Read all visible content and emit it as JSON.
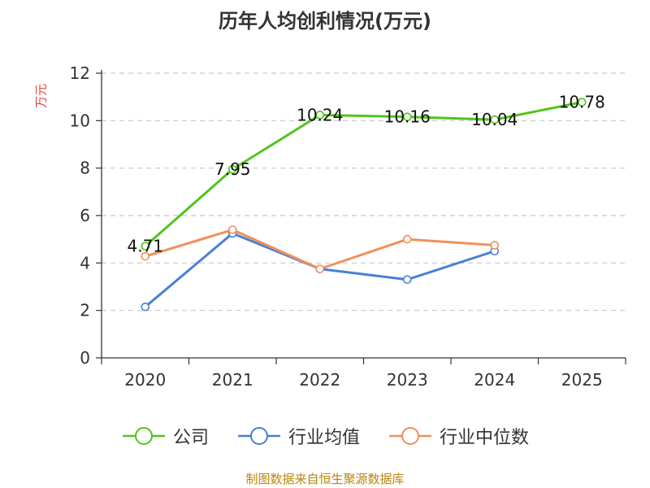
{
  "chart_data": {
    "type": "line",
    "title": "历年人均创利情况(万元)",
    "ylabel": "万元",
    "xlabel": "",
    "categories": [
      "2020",
      "2021",
      "2022",
      "2023",
      "2024",
      "2025"
    ],
    "ylim": [
      0,
      12
    ],
    "yticks": [
      0,
      2,
      4,
      6,
      8,
      10,
      12
    ],
    "grid": true,
    "legend_position": "bottom",
    "series": [
      {
        "name": "公司",
        "color": "#52c41a",
        "show_labels": true,
        "values": [
          4.71,
          7.95,
          10.24,
          10.16,
          10.04,
          10.78
        ],
        "labels": [
          "4.71",
          "7.95",
          "10.24",
          "10.16",
          "10.04",
          "10.78"
        ]
      },
      {
        "name": "行业均值",
        "color": "#4a7fd6",
        "show_labels": false,
        "values": [
          2.15,
          5.25,
          3.75,
          3.3,
          4.5,
          null
        ]
      },
      {
        "name": "行业中位数",
        "color": "#f0905a",
        "show_labels": false,
        "values": [
          4.28,
          5.4,
          3.75,
          5.0,
          4.75,
          null
        ]
      }
    ]
  },
  "axis_label_color": "#e8413a",
  "source_text": "制图数据来自恒生聚源数据库"
}
